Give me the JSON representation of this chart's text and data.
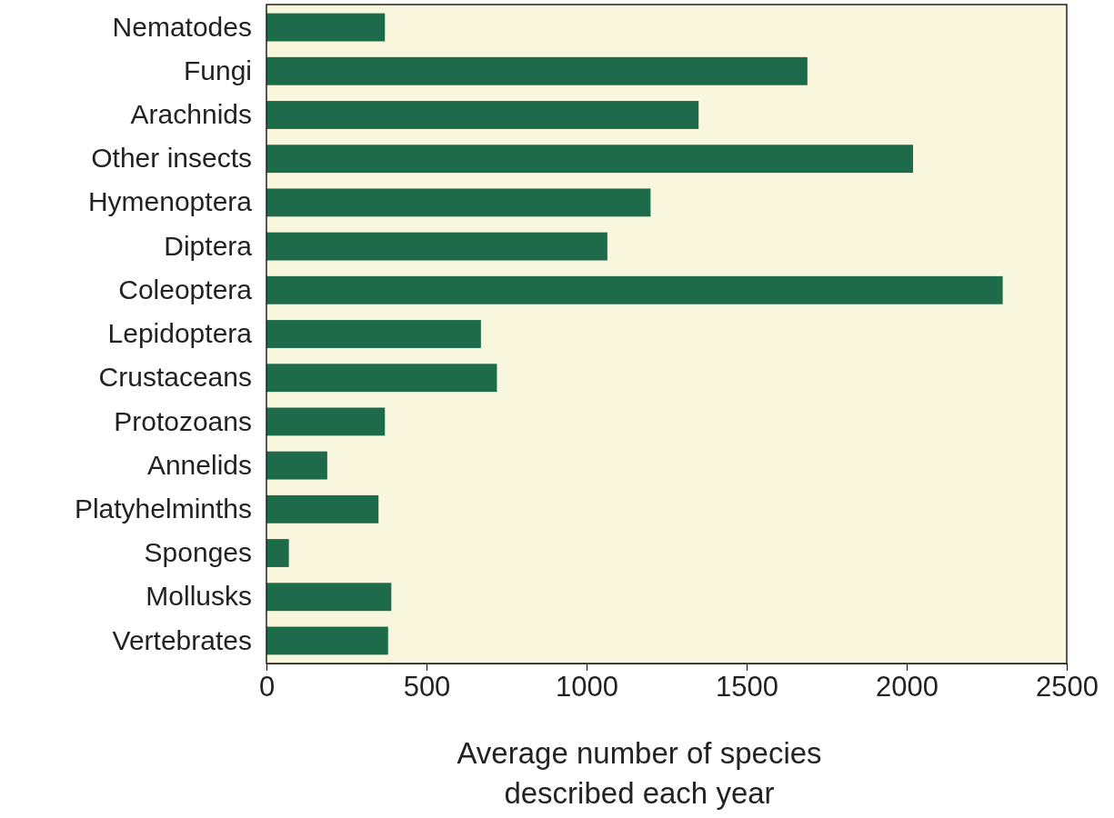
{
  "chart_data": {
    "type": "bar",
    "orientation": "horizontal",
    "xlabel": "Average number of species described each year",
    "categories": [
      "Nematodes",
      "Fungi",
      "Arachnids",
      "Other insects",
      "Hymenoptera",
      "Diptera",
      "Coleoptera",
      "Lepidoptera",
      "Crustaceans",
      "Protozoans",
      "Annelids",
      "Platyhelminths",
      "Sponges",
      "Mollusks",
      "Vertebrates"
    ],
    "values": [
      370,
      1690,
      1350,
      2020,
      1200,
      1065,
      2300,
      670,
      720,
      370,
      190,
      350,
      70,
      390,
      380
    ],
    "color": "#1e6b4c",
    "xlim": [
      0,
      2500
    ],
    "xticks": [
      0,
      500,
      1000,
      1500,
      2000,
      2500
    ]
  }
}
